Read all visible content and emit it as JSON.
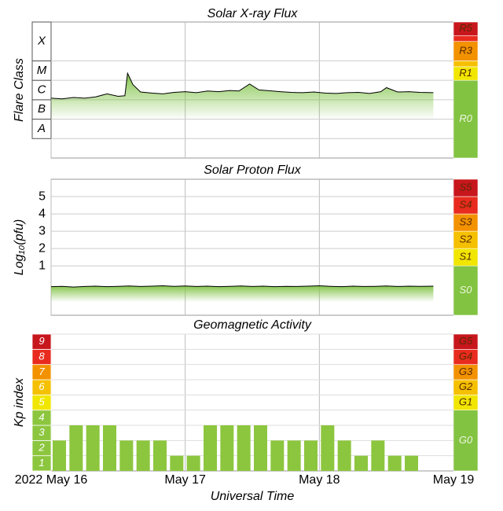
{
  "x_axis": {
    "label": "Universal Time",
    "xlim": [
      0,
      3
    ],
    "xticks": [
      {
        "value": 0,
        "label": "2022 May 16"
      },
      {
        "value": 1,
        "label": "May 17"
      },
      {
        "value": 2,
        "label": "May 18"
      },
      {
        "value": 3,
        "label": "May 19"
      }
    ]
  },
  "chart_data": [
    {
      "type": "line",
      "title": "Solar X-ray Flux",
      "y_label": "Flare Class",
      "log_scale": true,
      "ylim": [
        1e-09,
        0.01
      ],
      "color": "#000000",
      "fill_color": "#7dc242",
      "x": [
        0,
        0.083,
        0.167,
        0.25,
        0.333,
        0.417,
        0.5,
        0.55,
        0.57,
        0.61,
        0.667,
        0.75,
        0.833,
        0.917,
        1.0,
        1.083,
        1.167,
        1.25,
        1.333,
        1.4,
        1.48,
        1.55,
        1.625,
        1.708,
        1.792,
        1.875,
        1.958,
        2.042,
        2.125,
        2.208,
        2.292,
        2.375,
        2.458,
        2.5,
        2.583,
        2.667,
        2.75,
        2.85
      ],
      "values": [
        1.2e-06,
        1.1e-06,
        1.3e-06,
        1.2e-06,
        1.4e-06,
        2e-06,
        1.5e-06,
        1.6e-06,
        2.3e-05,
        6e-06,
        2.5e-06,
        2.2e-06,
        2e-06,
        2.4e-06,
        2.6e-06,
        2.3e-06,
        2.8e-06,
        2.6e-06,
        3e-06,
        2.8e-06,
        6.5e-06,
        3.2e-06,
        2.9e-06,
        2.6e-06,
        2.4e-06,
        2.3e-06,
        2.5e-06,
        2.2e-06,
        2.1e-06,
        2.3e-06,
        2.4e-06,
        2.1e-06,
        2.6e-06,
        4.2e-06,
        2.5e-06,
        2.6e-06,
        2.4e-06,
        2.3e-06
      ],
      "class_bands": [
        {
          "label": "A",
          "from": 1e-08,
          "to": 1e-07
        },
        {
          "label": "B",
          "from": 1e-07,
          "to": 1e-06
        },
        {
          "label": "C",
          "from": 1e-06,
          "to": 1e-05
        },
        {
          "label": "M",
          "from": 1e-05,
          "to": 0.0001
        },
        {
          "label": "X",
          "from": 0.0001,
          "to": 0.01
        }
      ],
      "scale_bands": [
        {
          "label": "R0",
          "from": 1e-09,
          "to": 1e-05,
          "color": "#82c341"
        },
        {
          "label": "R1",
          "from": 1e-05,
          "to": 5e-05,
          "color": "#f0e600"
        },
        {
          "label": null,
          "from": 5e-05,
          "to": 0.0001,
          "color": "#f5c000"
        },
        {
          "label": "R3",
          "from": 0.0001,
          "to": 0.001,
          "color": "#f39200"
        },
        {
          "label": null,
          "from": 0.001,
          "to": 0.002,
          "color": "#e82b1e"
        },
        {
          "label": "R5",
          "from": 0.002,
          "to": 0.01,
          "color": "#c8161d"
        }
      ]
    },
    {
      "type": "line",
      "title": "Solar Proton Flux",
      "y_label": "Log₁₀(pfu)",
      "ylim": [
        -1.85,
        6
      ],
      "yticks": [
        1,
        2,
        3,
        4,
        5
      ],
      "color": "#000000",
      "fill_color": "#7dc242",
      "x": [
        0,
        0.083,
        0.167,
        0.25,
        0.333,
        0.417,
        0.5,
        0.583,
        0.667,
        0.75,
        0.833,
        0.917,
        1.0,
        1.083,
        1.167,
        1.25,
        1.333,
        1.417,
        1.5,
        1.583,
        1.667,
        1.75,
        1.833,
        1.917,
        2.0,
        2.083,
        2.167,
        2.25,
        2.333,
        2.417,
        2.5,
        2.583,
        2.667,
        2.75,
        2.85
      ],
      "values": [
        -0.2,
        -0.18,
        -0.22,
        -0.19,
        -0.17,
        -0.2,
        -0.18,
        -0.16,
        -0.19,
        -0.17,
        -0.15,
        -0.18,
        -0.16,
        -0.19,
        -0.17,
        -0.2,
        -0.18,
        -0.16,
        -0.19,
        -0.17,
        -0.2,
        -0.18,
        -0.19,
        -0.17,
        -0.15,
        -0.18,
        -0.2,
        -0.17,
        -0.19,
        -0.18,
        -0.16,
        -0.19,
        -0.17,
        -0.18,
        -0.17
      ],
      "scale_bands": [
        {
          "label": "S0",
          "from": -1.85,
          "to": 1,
          "color": "#82c341"
        },
        {
          "label": "S1",
          "from": 1,
          "to": 2,
          "color": "#f0e600"
        },
        {
          "label": "S2",
          "from": 2,
          "to": 3,
          "color": "#f5c000"
        },
        {
          "label": "S3",
          "from": 3,
          "to": 4,
          "color": "#f39200"
        },
        {
          "label": "S4",
          "from": 4,
          "to": 5,
          "color": "#e82b1e"
        },
        {
          "label": "S5",
          "from": 5,
          "to": 6,
          "color": "#c8161d"
        }
      ]
    },
    {
      "type": "bar",
      "title": "Geomagnetic Activity",
      "y_label": "Kp index",
      "ylim": [
        0,
        9
      ],
      "color": "#8cc63e",
      "x": [
        0,
        0.125,
        0.25,
        0.375,
        0.5,
        0.625,
        0.75,
        0.875,
        1.0,
        1.125,
        1.25,
        1.375,
        1.5,
        1.625,
        1.75,
        1.875,
        2.0,
        2.125,
        2.25,
        2.375,
        2.5,
        2.625
      ],
      "values": [
        2,
        3,
        3,
        3,
        2,
        2,
        2,
        1,
        1,
        3,
        3,
        3,
        3,
        2,
        2,
        2,
        3,
        2,
        1,
        2,
        1,
        1
      ],
      "levels": [
        {
          "value": 1,
          "color": "#8cc63e"
        },
        {
          "value": 2,
          "color": "#8cc63e"
        },
        {
          "value": 3,
          "color": "#8cc63e"
        },
        {
          "value": 4,
          "color": "#8cc63e"
        },
        {
          "value": 5,
          "color": "#f0e600"
        },
        {
          "value": 6,
          "color": "#f5c000"
        },
        {
          "value": 7,
          "color": "#f39200"
        },
        {
          "value": 8,
          "color": "#e82b1e"
        },
        {
          "value": 9,
          "color": "#c8161d"
        }
      ],
      "scale_bands": [
        {
          "label": "G0",
          "from": 0,
          "to": 4,
          "color": "#82c341"
        },
        {
          "label": "G1",
          "from": 4,
          "to": 5,
          "color": "#f0e600"
        },
        {
          "label": "G2",
          "from": 5,
          "to": 6,
          "color": "#f5c000"
        },
        {
          "label": "G3",
          "from": 6,
          "to": 7,
          "color": "#f39200"
        },
        {
          "label": "G4",
          "from": 7,
          "to": 8,
          "color": "#e82b1e"
        },
        {
          "label": "G5",
          "from": 8,
          "to": 9,
          "color": "#c8161d"
        }
      ]
    }
  ]
}
